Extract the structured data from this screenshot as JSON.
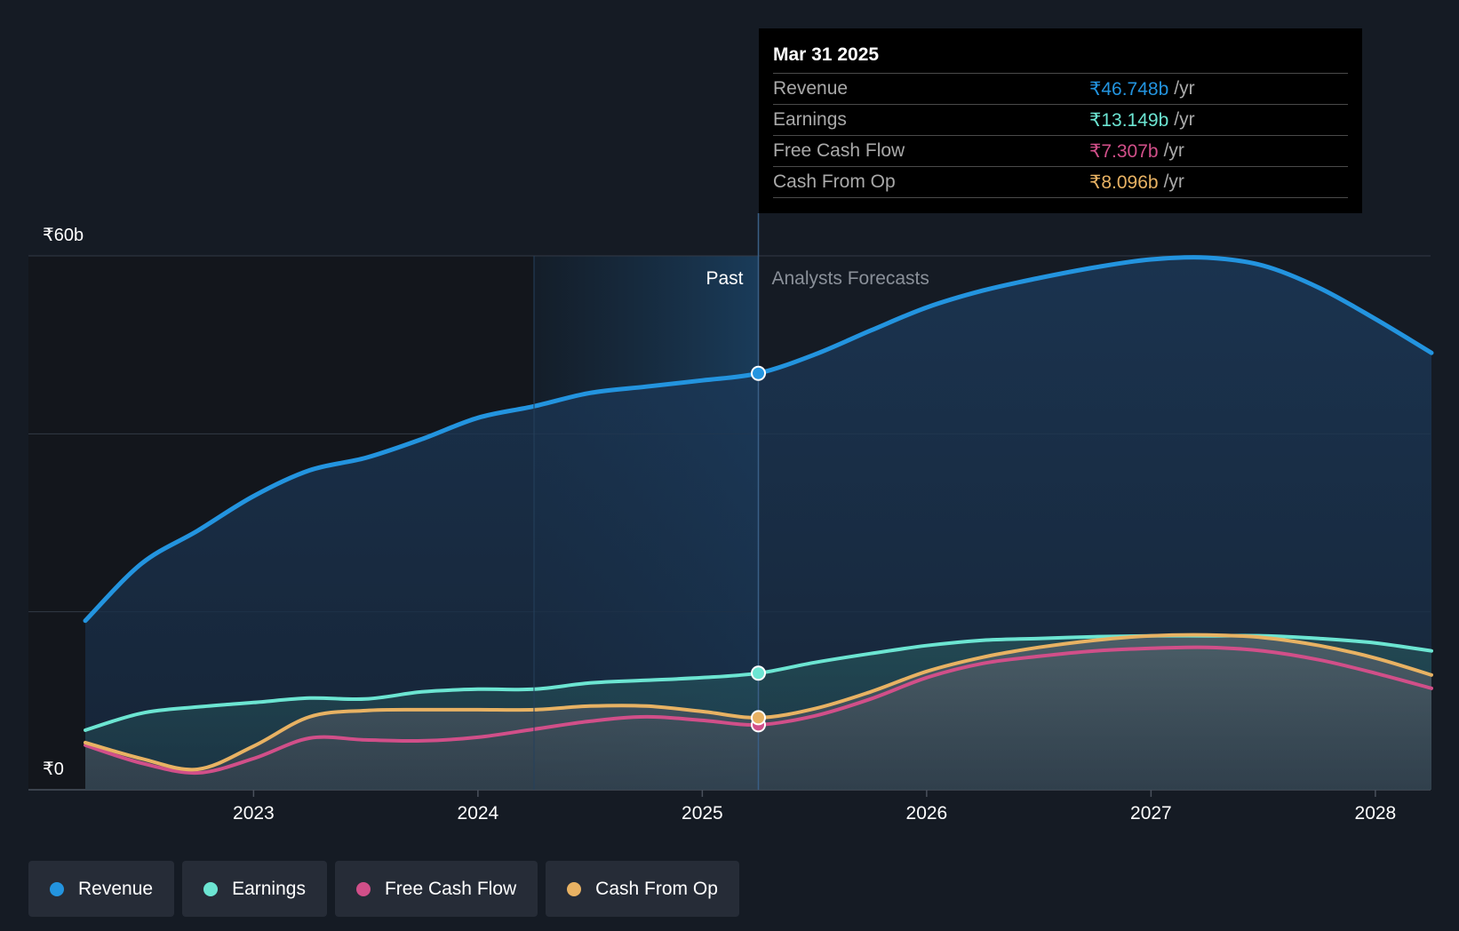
{
  "colors": {
    "background": "#151b24",
    "revenue": "#2394df",
    "earnings": "#6ce5d2",
    "free_cash_flow": "#d14f89",
    "cash_from_op": "#e8b263",
    "grid": "#323a46",
    "past_highlight": "#1b4a72"
  },
  "tooltip": {
    "date": "Mar 31 2025",
    "unit": "/yr",
    "rows": [
      {
        "label": "Revenue",
        "value": "₹46.748b",
        "color": "#2394df"
      },
      {
        "label": "Earnings",
        "value": "₹13.149b",
        "color": "#6ce5d2"
      },
      {
        "label": "Free Cash Flow",
        "value": "₹7.307b",
        "color": "#d14f89"
      },
      {
        "label": "Cash From Op",
        "value": "₹8.096b",
        "color": "#e8b263"
      }
    ]
  },
  "legend": [
    {
      "label": "Revenue",
      "color": "#2394df"
    },
    {
      "label": "Earnings",
      "color": "#6ce5d2"
    },
    {
      "label": "Free Cash Flow",
      "color": "#d14f89"
    },
    {
      "label": "Cash From Op",
      "color": "#e8b263"
    }
  ],
  "chart_data": {
    "type": "area",
    "title": "",
    "xlabel": "",
    "ylabel": "",
    "y_tick_labels": [
      "₹0",
      "₹60b"
    ],
    "ylim": [
      0,
      60
    ],
    "xlim": [
      2022.25,
      2028.25
    ],
    "x_ticks": [
      2023,
      2024,
      2025,
      2026,
      2027,
      2028
    ],
    "x_tick_labels": [
      "2023",
      "2024",
      "2025",
      "2026",
      "2027",
      "2028"
    ],
    "y_gridlines": [
      0,
      20,
      40,
      60
    ],
    "legend_position": "bottom-left",
    "past_label": "Past",
    "forecast_label": "Analysts Forecasts",
    "highlight_range": [
      2024.25,
      2025.25
    ],
    "divider_x": 2025.25,
    "marker_x": 2025.25,
    "series": [
      {
        "name": "Revenue",
        "key": "revenue",
        "color": "#2394df",
        "points": [
          [
            2022.25,
            19
          ],
          [
            2022.5,
            25.4
          ],
          [
            2022.75,
            29.1
          ],
          [
            2023,
            33
          ],
          [
            2023.25,
            35.9
          ],
          [
            2023.5,
            37.3
          ],
          [
            2023.75,
            39.4
          ],
          [
            2024,
            41.8
          ],
          [
            2024.25,
            43.1
          ],
          [
            2024.5,
            44.6
          ],
          [
            2024.75,
            45.3
          ],
          [
            2025,
            46
          ],
          [
            2025.25,
            46.8
          ],
          [
            2025.5,
            48.9
          ],
          [
            2025.75,
            51.6
          ],
          [
            2026,
            54.2
          ],
          [
            2026.25,
            56.1
          ],
          [
            2026.5,
            57.5
          ],
          [
            2026.75,
            58.7
          ],
          [
            2027,
            59.6
          ],
          [
            2027.25,
            59.8
          ],
          [
            2027.5,
            58.9
          ],
          [
            2027.75,
            56.4
          ],
          [
            2028,
            52.9
          ],
          [
            2028.25,
            49.1
          ]
        ]
      },
      {
        "name": "Earnings",
        "key": "earnings",
        "color": "#6ce5d2",
        "points": [
          [
            2022.25,
            6.7
          ],
          [
            2022.5,
            8.6
          ],
          [
            2022.75,
            9.3
          ],
          [
            2023,
            9.8
          ],
          [
            2023.25,
            10.3
          ],
          [
            2023.5,
            10.2
          ],
          [
            2023.75,
            11
          ],
          [
            2024,
            11.3
          ],
          [
            2024.25,
            11.3
          ],
          [
            2024.5,
            12
          ],
          [
            2024.75,
            12.3
          ],
          [
            2025,
            12.6
          ],
          [
            2025.25,
            13.1
          ],
          [
            2025.5,
            14.3
          ],
          [
            2025.75,
            15.3
          ],
          [
            2026,
            16.2
          ],
          [
            2026.25,
            16.8
          ],
          [
            2026.5,
            17
          ],
          [
            2026.75,
            17.2
          ],
          [
            2027,
            17.3
          ],
          [
            2027.25,
            17.3
          ],
          [
            2027.5,
            17.3
          ],
          [
            2027.75,
            17
          ],
          [
            2028,
            16.5
          ],
          [
            2028.25,
            15.6
          ]
        ]
      },
      {
        "name": "Free Cash Flow",
        "key": "free_cash_flow",
        "color": "#d14f89",
        "points": [
          [
            2022.25,
            5
          ],
          [
            2022.5,
            3
          ],
          [
            2022.75,
            1.9
          ],
          [
            2023,
            3.5
          ],
          [
            2023.25,
            5.8
          ],
          [
            2023.5,
            5.6
          ],
          [
            2023.75,
            5.5
          ],
          [
            2024,
            5.9
          ],
          [
            2024.25,
            6.8
          ],
          [
            2024.5,
            7.7
          ],
          [
            2024.75,
            8.2
          ],
          [
            2025,
            7.8
          ],
          [
            2025.25,
            7.3
          ],
          [
            2025.5,
            8.3
          ],
          [
            2025.75,
            10.2
          ],
          [
            2026,
            12.6
          ],
          [
            2026.25,
            14.2
          ],
          [
            2026.5,
            15
          ],
          [
            2026.75,
            15.6
          ],
          [
            2027,
            15.9
          ],
          [
            2027.25,
            16
          ],
          [
            2027.5,
            15.6
          ],
          [
            2027.75,
            14.6
          ],
          [
            2028,
            13.1
          ],
          [
            2028.25,
            11.4
          ]
        ]
      },
      {
        "name": "Cash From Op",
        "key": "cash_from_op",
        "color": "#e8b263",
        "points": [
          [
            2022.25,
            5.3
          ],
          [
            2022.5,
            3.5
          ],
          [
            2022.75,
            2.3
          ],
          [
            2023,
            4.9
          ],
          [
            2023.25,
            8.2
          ],
          [
            2023.5,
            8.9
          ],
          [
            2023.75,
            9
          ],
          [
            2024,
            9
          ],
          [
            2024.25,
            9
          ],
          [
            2024.5,
            9.4
          ],
          [
            2024.75,
            9.4
          ],
          [
            2025,
            8.8
          ],
          [
            2025.25,
            8.1
          ],
          [
            2025.5,
            9.1
          ],
          [
            2025.75,
            11
          ],
          [
            2026,
            13.3
          ],
          [
            2026.25,
            14.9
          ],
          [
            2026.5,
            16
          ],
          [
            2026.75,
            16.8
          ],
          [
            2027,
            17.3
          ],
          [
            2027.25,
            17.4
          ],
          [
            2027.5,
            17.1
          ],
          [
            2027.75,
            16.2
          ],
          [
            2028,
            14.8
          ],
          [
            2028.25,
            12.9
          ]
        ]
      }
    ]
  }
}
